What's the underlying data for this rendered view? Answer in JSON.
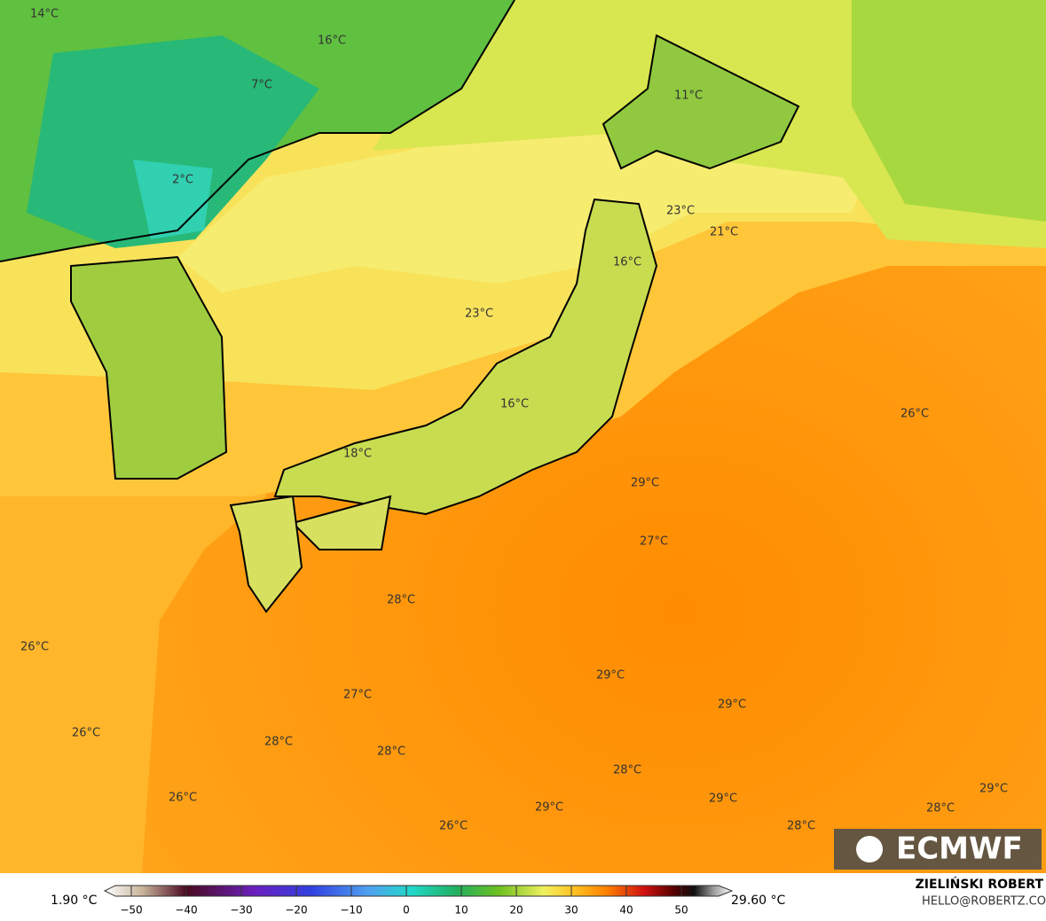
{
  "map": {
    "labels": [
      "14°C",
      "16°C",
      "7°C",
      "2°C",
      "11°C",
      "23°C",
      "21°C",
      "16°C",
      "23°C",
      "26°C",
      "16°C",
      "18°C",
      "29°C",
      "27°C",
      "28°C",
      "26°C",
      "29°C",
      "27°C",
      "29°C",
      "26°C",
      "28°C",
      "28°C",
      "28°C",
      "26°C",
      "29°C",
      "29°C",
      "26°C",
      "29°C",
      "28°C",
      "28°C"
    ]
  },
  "colorbar": {
    "min_label": "1.90 °C",
    "max_label": "29.60 °C",
    "ticks": [
      {
        "value": -50,
        "label": "−50"
      },
      {
        "value": -40,
        "label": "−40"
      },
      {
        "value": -30,
        "label": "−30"
      },
      {
        "value": -20,
        "label": "−20"
      },
      {
        "value": -10,
        "label": "−10"
      },
      0,
      10,
      20,
      30,
      40,
      50
    ]
  },
  "credit": {
    "name": "ZIELIŃSKI ROBERT",
    "email": "HELLO@ROBERTZ.CO"
  },
  "logo": {
    "text": "ECMWF"
  }
}
